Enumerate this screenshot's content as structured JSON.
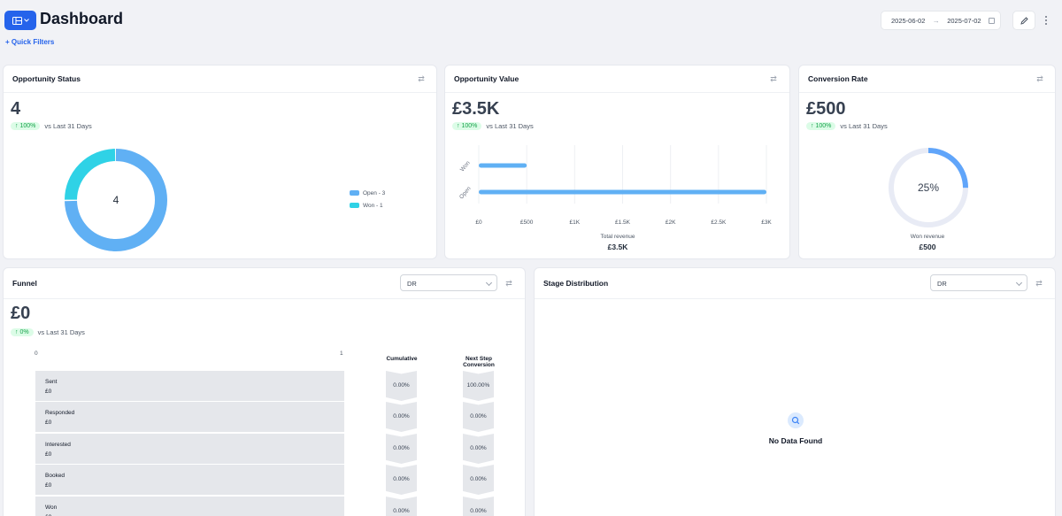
{
  "header": {
    "title": "Dashboard",
    "quick_filters": "+ Quick Filters",
    "date_start": "2025-06-02",
    "date_arrow": "→",
    "date_end": "2025-07-02"
  },
  "icons": {
    "view": "layout-icon",
    "settings": "swap-arrows-icon",
    "edit": "pencil-icon",
    "more": "kebab-icon",
    "calendar": "calendar-icon",
    "search": "search-icon"
  },
  "colors": {
    "primary": "#2563eb",
    "open": "#60b0f4",
    "won": "#2fd2e6",
    "positive": "#16a34a",
    "positive_bg": "#dcfce7"
  },
  "opportunity_status": {
    "title": "Opportunity Status",
    "value": "4",
    "trend": "↑ 100%",
    "trend_label": "vs Last 31 Days",
    "center_label": "4",
    "legend": [
      {
        "label": "Open - 3",
        "color": "#60b0f4"
      },
      {
        "label": "Won - 1",
        "color": "#2fd2e6"
      }
    ]
  },
  "opportunity_value": {
    "title": "Opportunity Value",
    "value": "£3.5K",
    "trend": "↑ 100%",
    "trend_label": "vs Last 31 Days",
    "footer_label": "Total revenue",
    "footer_value": "£3.5K"
  },
  "conversion_rate": {
    "title": "Conversion Rate",
    "value": "£500",
    "trend": "↑ 100%",
    "trend_label": "vs Last 31 Days",
    "gauge_label": "25%",
    "gauge_fraction": 0.25,
    "footer_label": "Won revenue",
    "footer_value": "£500"
  },
  "funnel": {
    "title": "Funnel",
    "select_value": "DR",
    "value": "£0",
    "trend": "↑ 0%",
    "trend_label": "vs Last 31 Days",
    "axis_min": "0",
    "axis_max": "1",
    "col_cumulative": "Cumulative",
    "col_next_step_line1": "Next Step",
    "col_next_step_line2": "Conversion",
    "rows": [
      {
        "stage": "Sent",
        "amount": "£0",
        "cumulative": "0.00%",
        "next": "100.00%"
      },
      {
        "stage": "Responded",
        "amount": "£0",
        "cumulative": "0.00%",
        "next": "0.00%"
      },
      {
        "stage": "Interested",
        "amount": "£0",
        "cumulative": "0.00%",
        "next": "0.00%"
      },
      {
        "stage": "Booked",
        "amount": "£0",
        "cumulative": "0.00%",
        "next": "0.00%"
      },
      {
        "stage": "Won",
        "amount": "£0",
        "cumulative": "0.00%",
        "next": "0.00%"
      }
    ]
  },
  "stage_distribution": {
    "title": "Stage Distribution",
    "select_value": "DR",
    "empty_text": "No Data Found"
  },
  "chart_data": [
    {
      "type": "pie",
      "labels": [
        "Open",
        "Won"
      ],
      "values": [
        3,
        1
      ]
    },
    {
      "type": "bar",
      "orientation": "horizontal",
      "categories": [
        "Won",
        "Open"
      ],
      "values": [
        500,
        3000
      ],
      "xlabel": "Total revenue",
      "xlim": [
        0,
        3000
      ],
      "xticks": [
        "£0",
        "£500",
        "£1K",
        "£1.5K",
        "£2K",
        "£2.5K",
        "£3K"
      ],
      "grid": true
    }
  ]
}
